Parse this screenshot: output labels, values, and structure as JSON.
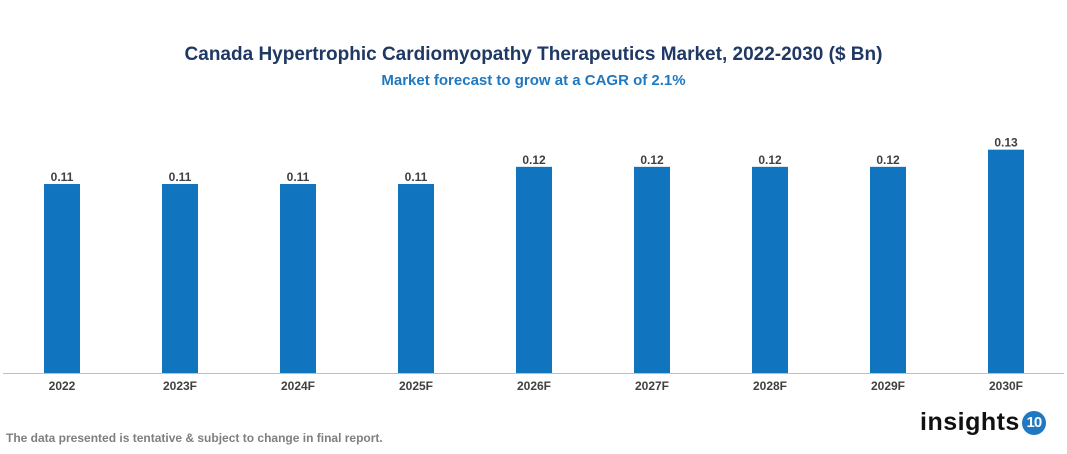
{
  "chart_data": {
    "type": "bar",
    "title": "Canada Hypertrophic Cardiomyopathy Therapeutics Market, 2022-2030 ($ Bn)",
    "subtitle": "Market forecast to grow at a CAGR of 2.1%",
    "categories": [
      "2022",
      "2023F",
      "2024F",
      "2025F",
      "2026F",
      "2027F",
      "2028F",
      "2029F",
      "2030F"
    ],
    "values": [
      0.11,
      0.11,
      0.11,
      0.11,
      0.12,
      0.12,
      0.12,
      0.12,
      0.13
    ],
    "xlabel": "",
    "ylabel": "",
    "grid": false,
    "bar_color": "#1174be"
  },
  "footnote": "The data presented is tentative & subject to change in final report.",
  "logo": {
    "text": "insights",
    "badge": "10"
  }
}
